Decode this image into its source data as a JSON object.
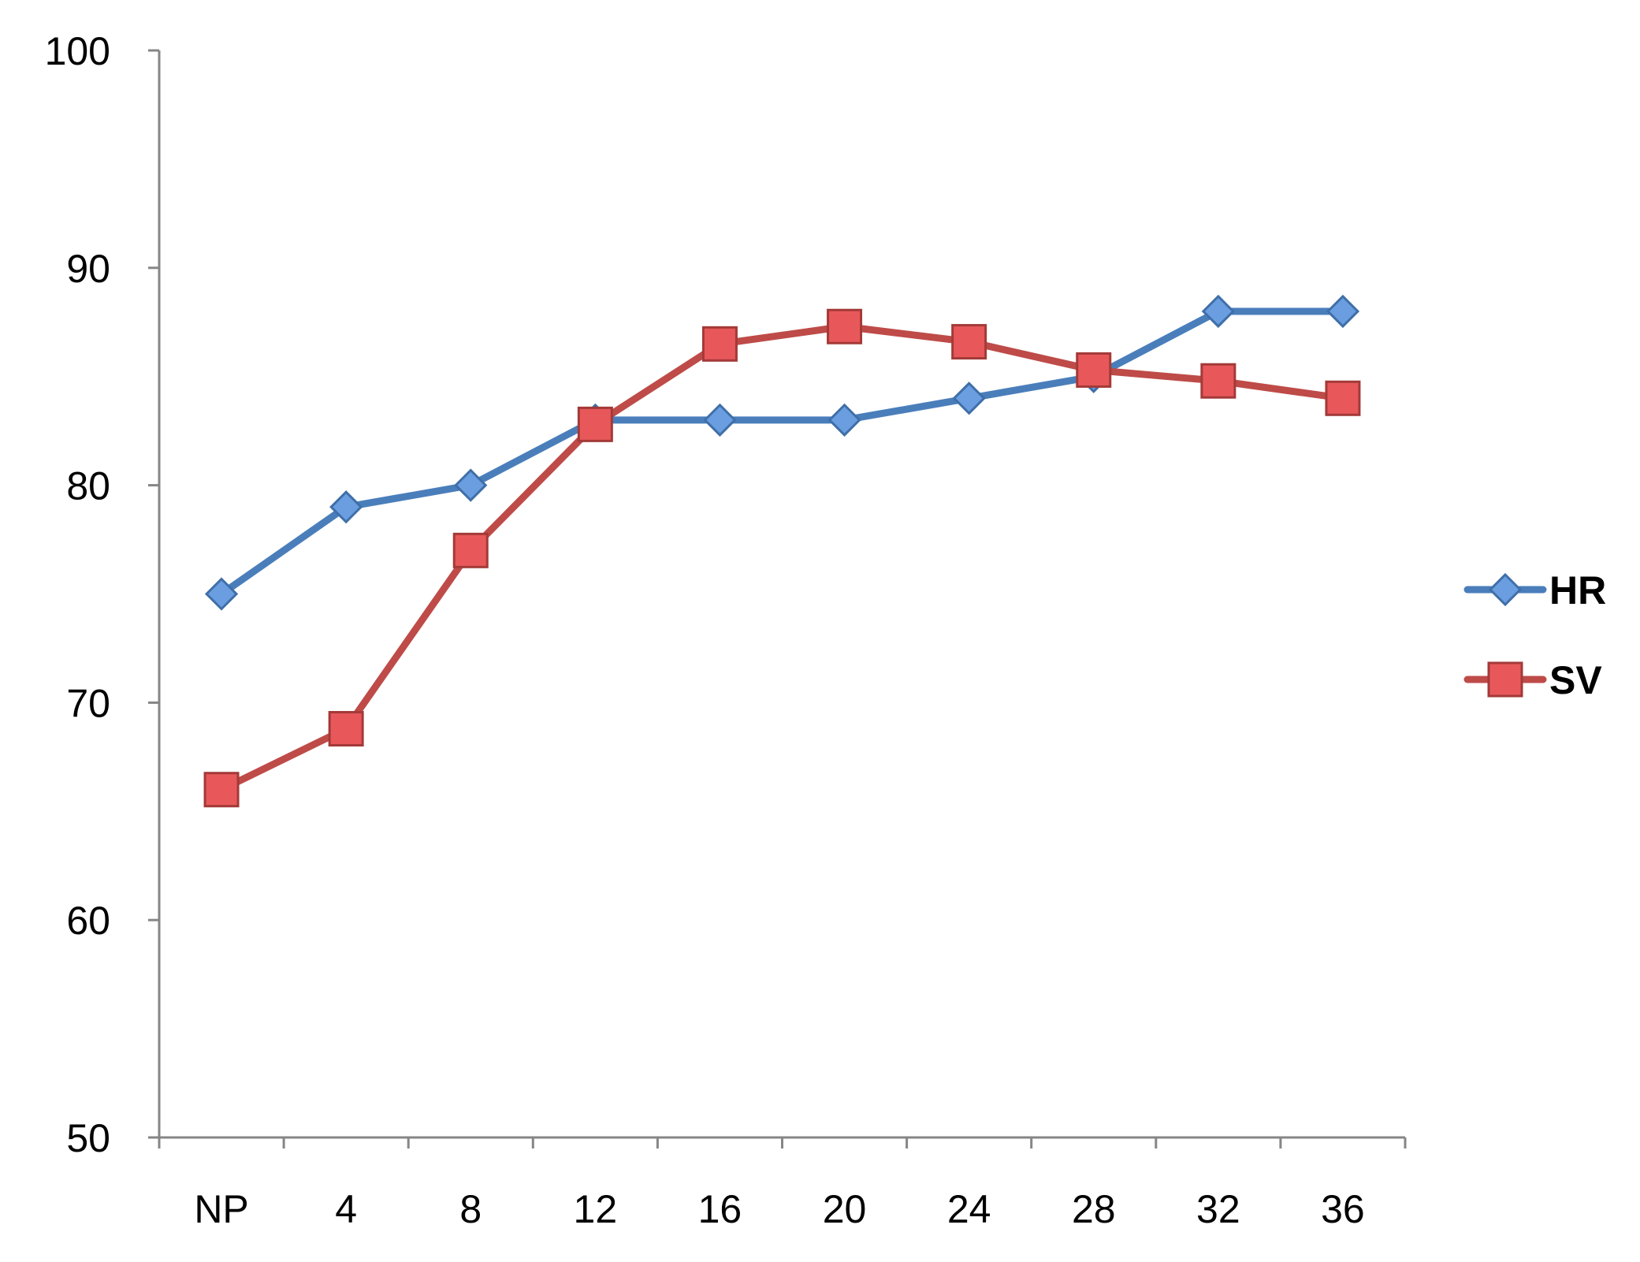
{
  "chart_data": {
    "type": "line",
    "title": "",
    "xlabel": "",
    "ylabel": "",
    "categories": [
      "NP",
      "4",
      "8",
      "12",
      "16",
      "20",
      "24",
      "28",
      "32",
      "36"
    ],
    "ylim": [
      50,
      100
    ],
    "yticks": [
      "50",
      "60",
      "70",
      "80",
      "90",
      "100"
    ],
    "grid": false,
    "legend_position": "right",
    "series": [
      {
        "name": "HR",
        "values": [
          75,
          79,
          80,
          83,
          83,
          83,
          84,
          85,
          88,
          88
        ],
        "color": "#4a7ebb",
        "marker": "diamond"
      },
      {
        "name": "SV",
        "values": [
          66,
          68.8,
          77,
          82.8,
          86.5,
          87.3,
          86.6,
          85.3,
          84.8,
          84
        ],
        "color": "#be4b48",
        "marker_fill": "#e8585a",
        "marker": "square"
      }
    ]
  }
}
